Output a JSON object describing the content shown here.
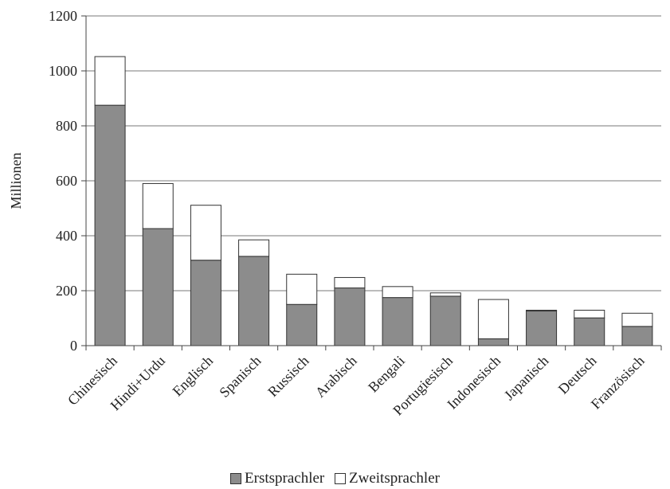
{
  "chart_data": {
    "type": "bar",
    "stacked": true,
    "title": "",
    "xlabel": "",
    "ylabel": "Millionen",
    "ylim": [
      0,
      1200
    ],
    "yticks": [
      0,
      200,
      400,
      600,
      800,
      1000,
      1200
    ],
    "grid": true,
    "legend_position": "bottom",
    "categories": [
      "Chinesisch",
      "Hindi+Urdu",
      "Englisch",
      "Spanisch",
      "Russisch",
      "Arabisch",
      "Bengali",
      "Portugiesisch",
      "Indonesisch",
      "Japanisch",
      "Deutsch",
      "Französisch"
    ],
    "series": [
      {
        "name": "Erstsprachler",
        "color": "#8c8c8c",
        "values": [
          875,
          426,
          311,
          325,
          150,
          210,
          175,
          180,
          25,
          126,
          101,
          70
        ]
      },
      {
        "name": "Zweitsprachler",
        "color": "#ffffff",
        "values": [
          177,
          164,
          200,
          60,
          110,
          38,
          40,
          12,
          143,
          3,
          28,
          48
        ]
      }
    ]
  }
}
